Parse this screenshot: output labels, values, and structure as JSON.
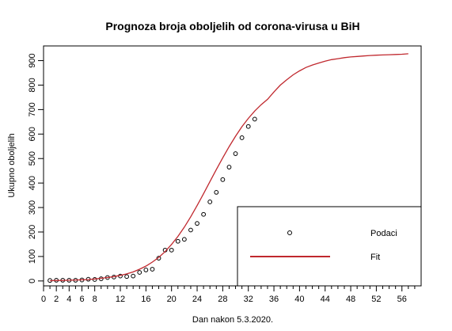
{
  "chart_data": {
    "type": "scatter",
    "title": "Prognoza broja oboljelih od corona-virusa u BiH",
    "xlabel": "Dan nakon 5.3.2020.",
    "ylabel": "Ukupno oboljelih",
    "xlim": [
      0,
      59
    ],
    "ylim": [
      -20,
      960
    ],
    "x_ticks": [
      0,
      2,
      4,
      6,
      8,
      12,
      16,
      20,
      24,
      28,
      32,
      36,
      40,
      44,
      48,
      52,
      56
    ],
    "x_minor_ticks": [
      1,
      3,
      5,
      7,
      9,
      10,
      11,
      13,
      14,
      15,
      17,
      18,
      19,
      21,
      22,
      23,
      25,
      26,
      27,
      29,
      30,
      31,
      33,
      34,
      35,
      37,
      38,
      39,
      41,
      42,
      43,
      45,
      46,
      47,
      49,
      50,
      51,
      53,
      54,
      55,
      57,
      58
    ],
    "y_ticks": [
      0,
      100,
      200,
      300,
      400,
      500,
      600,
      700,
      800,
      900
    ],
    "grid": false,
    "legend_position": "bottom-right",
    "legend": [
      {
        "label": "Podaci",
        "symbol": "o"
      },
      {
        "label": "Fit"
      }
    ],
    "series": [
      {
        "name": "Podaci",
        "kind": "points",
        "color": "#000000",
        "x": [
          1,
          2,
          3,
          4,
          5,
          6,
          7,
          8,
          9,
          10,
          11,
          12,
          13,
          14,
          15,
          16,
          17,
          18,
          19,
          20,
          21,
          22,
          23,
          24,
          25,
          26,
          27,
          28,
          29,
          30,
          31,
          32,
          33
        ],
        "y": [
          2,
          3,
          3,
          3,
          3,
          4,
          7,
          6,
          9,
          14,
          16,
          20,
          18,
          20,
          35,
          45,
          48,
          93,
          126,
          126,
          162,
          170,
          208,
          235,
          272,
          323,
          362,
          414,
          465,
          520,
          585,
          631,
          661
        ]
      },
      {
        "name": "Fit",
        "kind": "line",
        "color": "#c0282e",
        "x": [
          1,
          2,
          3,
          4,
          5,
          6,
          7,
          8,
          9,
          10,
          11,
          12,
          13,
          14,
          15,
          16,
          17,
          18,
          19,
          20,
          21,
          22,
          23,
          24,
          25,
          26,
          27,
          28,
          29,
          30,
          31,
          32,
          33,
          34,
          35,
          36,
          37,
          38,
          39,
          40,
          41,
          42,
          43,
          44,
          45,
          46,
          47,
          48,
          49,
          50,
          51,
          52,
          53,
          54,
          55,
          56,
          57
        ],
        "y": [
          1,
          2,
          2,
          3,
          4,
          5,
          6,
          8,
          11,
          14,
          18,
          23,
          29,
          37,
          48,
          61,
          77,
          96,
          120,
          149,
          182,
          220,
          262,
          308,
          356,
          406,
          455,
          503,
          549,
          591,
          630,
          664,
          694,
          720,
          742,
          772,
          800,
          822,
          842,
          858,
          872,
          882,
          890,
          898,
          904,
          908,
          912,
          915,
          917,
          919,
          921,
          922,
          923,
          924,
          925,
          926,
          928
        ]
      }
    ]
  }
}
